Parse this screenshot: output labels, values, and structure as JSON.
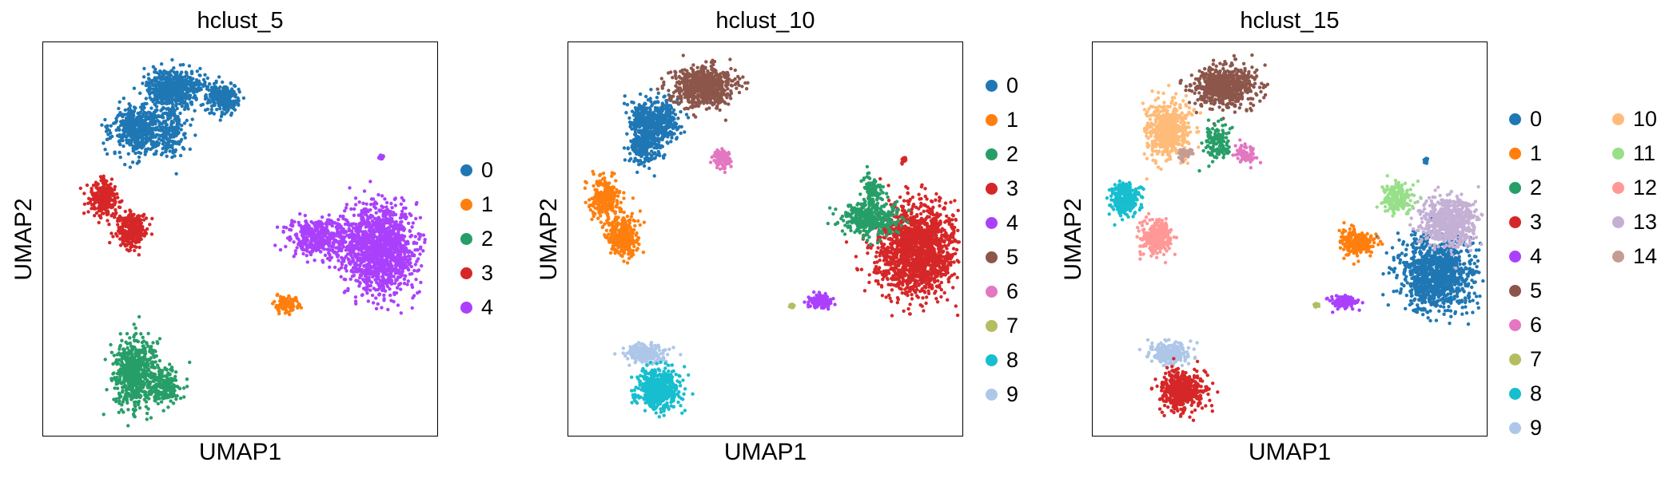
{
  "chart_data": [
    {
      "type": "scatter",
      "title": "hclust_5",
      "xlabel": "UMAP1",
      "ylabel": "UMAP2",
      "grid": false,
      "legend_placement": "right",
      "legend": [
        {
          "label": "0",
          "color": "#1f77b4"
        },
        {
          "label": "1",
          "color": "#ff7f0e"
        },
        {
          "label": "2",
          "color": "#279e68"
        },
        {
          "label": "3",
          "color": "#d62728"
        },
        {
          "label": "4",
          "color": "#aa40fc"
        }
      ]
    },
    {
      "type": "scatter",
      "title": "hclust_10",
      "xlabel": "UMAP1",
      "ylabel": "UMAP2",
      "grid": false,
      "legend_placement": "right",
      "legend": [
        {
          "label": "0",
          "color": "#1f77b4"
        },
        {
          "label": "1",
          "color": "#ff7f0e"
        },
        {
          "label": "2",
          "color": "#279e68"
        },
        {
          "label": "3",
          "color": "#d62728"
        },
        {
          "label": "4",
          "color": "#aa40fc"
        },
        {
          "label": "5",
          "color": "#8c564b"
        },
        {
          "label": "6",
          "color": "#e377c2"
        },
        {
          "label": "7",
          "color": "#b5bd61"
        },
        {
          "label": "8",
          "color": "#17becf"
        },
        {
          "label": "9",
          "color": "#aec7e8"
        }
      ]
    },
    {
      "type": "scatter",
      "title": "hclust_15",
      "xlabel": "UMAP1",
      "ylabel": "UMAP2",
      "grid": false,
      "legend_placement": "right",
      "legend": [
        {
          "label": "0",
          "color": "#1f77b4"
        },
        {
          "label": "1",
          "color": "#ff7f0e"
        },
        {
          "label": "2",
          "color": "#279e68"
        },
        {
          "label": "3",
          "color": "#d62728"
        },
        {
          "label": "4",
          "color": "#aa40fc"
        },
        {
          "label": "5",
          "color": "#8c564b"
        },
        {
          "label": "6",
          "color": "#e377c2"
        },
        {
          "label": "7",
          "color": "#b5bd61"
        },
        {
          "label": "8",
          "color": "#17becf"
        },
        {
          "label": "9",
          "color": "#aec7e8"
        },
        {
          "label": "10",
          "color": "#ffbb78"
        },
        {
          "label": "11",
          "color": "#98df8a"
        },
        {
          "label": "12",
          "color": "#ff9896"
        },
        {
          "label": "13",
          "color": "#c5b0d5"
        },
        {
          "label": "14",
          "color": "#c49c94"
        }
      ]
    }
  ]
}
